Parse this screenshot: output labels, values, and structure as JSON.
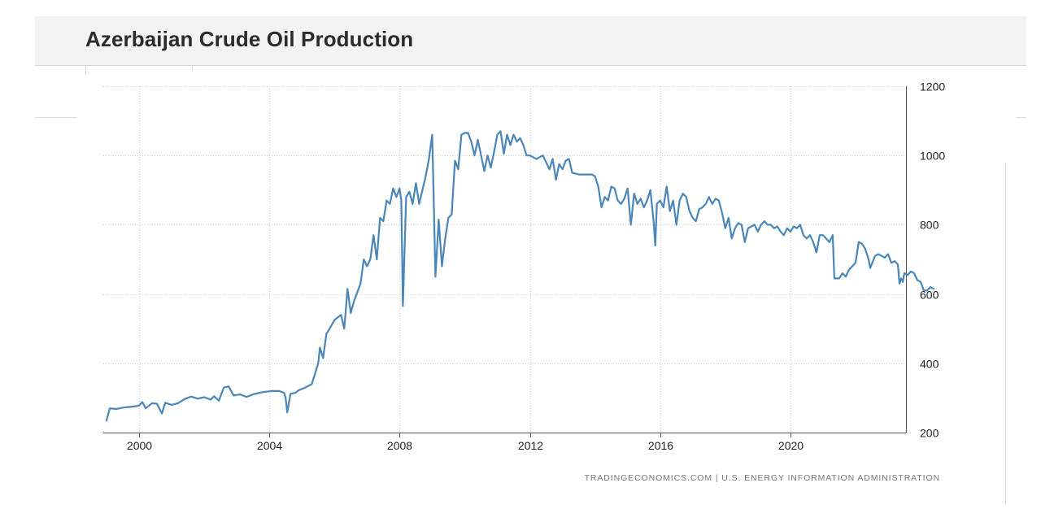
{
  "header": {
    "title": "Azerbaijan Crude Oil Production"
  },
  "footer": {
    "source": "TRADINGECONOMICS.COM  |  U.S. ENERGY INFORMATION ADMINISTRATION"
  },
  "colors": {
    "line": "#4a86b8",
    "grid": "#d0d0d0",
    "header_bg": "#f3f3f3",
    "title": "#2b2b2b"
  },
  "chart_data": {
    "type": "line",
    "title": "Azerbaijan Crude Oil Production",
    "xlabel": "",
    "ylabel": "",
    "xlim": [
      1998.9,
      2023.55
    ],
    "ylim": [
      200,
      1200
    ],
    "x_ticks": [
      2000,
      2004,
      2008,
      2012,
      2016,
      2020
    ],
    "x_tick_labels": [
      "2000",
      "2004",
      "2008",
      "2012",
      "2016",
      "2020"
    ],
    "y_ticks": [
      200,
      400,
      600,
      800,
      1000,
      1200
    ],
    "y_tick_labels": [
      "200",
      "400",
      "600",
      "800",
      "1000",
      "1200"
    ],
    "y_axis_position": "right",
    "grid": true,
    "legend": "none",
    "series": [
      {
        "values": [
          [
            1999.0,
            235
          ],
          [
            1999.1,
            270
          ],
          [
            1999.3,
            268
          ],
          [
            1999.5,
            272
          ],
          [
            1999.7,
            274
          ],
          [
            1999.9,
            276
          ],
          [
            2000.0,
            278
          ],
          [
            2000.1,
            288
          ],
          [
            2000.2,
            270
          ],
          [
            2000.4,
            285
          ],
          [
            2000.55,
            283
          ],
          [
            2000.7,
            255
          ],
          [
            2000.8,
            286
          ],
          [
            2001.0,
            280
          ],
          [
            2001.2,
            285
          ],
          [
            2001.4,
            297
          ],
          [
            2001.6,
            304
          ],
          [
            2001.8,
            298
          ],
          [
            2002.0,
            302
          ],
          [
            2002.2,
            295
          ],
          [
            2002.3,
            305
          ],
          [
            2002.45,
            292
          ],
          [
            2002.6,
            330
          ],
          [
            2002.75,
            333
          ],
          [
            2002.9,
            307
          ],
          [
            2003.1,
            310
          ],
          [
            2003.3,
            303
          ],
          [
            2003.5,
            310
          ],
          [
            2003.7,
            315
          ],
          [
            2003.9,
            318
          ],
          [
            2004.1,
            320
          ],
          [
            2004.3,
            320
          ],
          [
            2004.45,
            315
          ],
          [
            2004.5,
            300
          ],
          [
            2004.55,
            258
          ],
          [
            2004.65,
            312
          ],
          [
            2004.8,
            315
          ],
          [
            2004.9,
            322
          ],
          [
            2005.1,
            330
          ],
          [
            2005.3,
            340
          ],
          [
            2005.5,
            400
          ],
          [
            2005.55,
            445
          ],
          [
            2005.65,
            415
          ],
          [
            2005.75,
            485
          ],
          [
            2005.85,
            500
          ],
          [
            2006.0,
            525
          ],
          [
            2006.2,
            540
          ],
          [
            2006.3,
            500
          ],
          [
            2006.4,
            615
          ],
          [
            2006.5,
            545
          ],
          [
            2006.6,
            580
          ],
          [
            2006.7,
            605
          ],
          [
            2006.8,
            630
          ],
          [
            2006.9,
            700
          ],
          [
            2007.0,
            680
          ],
          [
            2007.1,
            700
          ],
          [
            2007.2,
            770
          ],
          [
            2007.3,
            700
          ],
          [
            2007.4,
            820
          ],
          [
            2007.5,
            810
          ],
          [
            2007.6,
            870
          ],
          [
            2007.7,
            860
          ],
          [
            2007.8,
            905
          ],
          [
            2007.9,
            880
          ],
          [
            2008.0,
            905
          ],
          [
            2008.05,
            870
          ],
          [
            2008.1,
            565
          ],
          [
            2008.2,
            880
          ],
          [
            2008.3,
            895
          ],
          [
            2008.4,
            860
          ],
          [
            2008.5,
            920
          ],
          [
            2008.6,
            860
          ],
          [
            2008.7,
            900
          ],
          [
            2008.8,
            940
          ],
          [
            2008.9,
            990
          ],
          [
            2009.0,
            1060
          ],
          [
            2009.05,
            860
          ],
          [
            2009.1,
            650
          ],
          [
            2009.2,
            815
          ],
          [
            2009.3,
            680
          ],
          [
            2009.4,
            760
          ],
          [
            2009.5,
            820
          ],
          [
            2009.6,
            830
          ],
          [
            2009.7,
            985
          ],
          [
            2009.8,
            960
          ],
          [
            2009.9,
            1060
          ],
          [
            2010.0,
            1065
          ],
          [
            2010.1,
            1065
          ],
          [
            2010.2,
            1040
          ],
          [
            2010.3,
            1000
          ],
          [
            2010.4,
            1045
          ],
          [
            2010.5,
            1000
          ],
          [
            2010.6,
            955
          ],
          [
            2010.7,
            1000
          ],
          [
            2010.8,
            965
          ],
          [
            2010.9,
            1010
          ],
          [
            2011.0,
            1060
          ],
          [
            2011.1,
            1070
          ],
          [
            2011.2,
            1005
          ],
          [
            2011.3,
            1060
          ],
          [
            2011.4,
            1030
          ],
          [
            2011.5,
            1060
          ],
          [
            2011.6,
            1040
          ],
          [
            2011.7,
            1050
          ],
          [
            2011.8,
            1030
          ],
          [
            2011.9,
            1000
          ],
          [
            2012.0,
            1000
          ],
          [
            2012.2,
            990
          ],
          [
            2012.4,
            1000
          ],
          [
            2012.6,
            960
          ],
          [
            2012.7,
            990
          ],
          [
            2012.8,
            930
          ],
          [
            2012.9,
            975
          ],
          [
            2013.0,
            960
          ],
          [
            2013.1,
            985
          ],
          [
            2013.2,
            990
          ],
          [
            2013.3,
            950
          ],
          [
            2013.5,
            945
          ],
          [
            2013.7,
            945
          ],
          [
            2013.9,
            945
          ],
          [
            2014.0,
            940
          ],
          [
            2014.1,
            910
          ],
          [
            2014.2,
            850
          ],
          [
            2014.3,
            880
          ],
          [
            2014.4,
            870
          ],
          [
            2014.5,
            910
          ],
          [
            2014.6,
            905
          ],
          [
            2014.7,
            870
          ],
          [
            2014.8,
            860
          ],
          [
            2014.9,
            875
          ],
          [
            2015.0,
            905
          ],
          [
            2015.1,
            800
          ],
          [
            2015.2,
            890
          ],
          [
            2015.3,
            860
          ],
          [
            2015.4,
            875
          ],
          [
            2015.5,
            850
          ],
          [
            2015.6,
            870
          ],
          [
            2015.7,
            900
          ],
          [
            2015.8,
            810
          ],
          [
            2015.85,
            740
          ],
          [
            2015.9,
            860
          ],
          [
            2016.0,
            870
          ],
          [
            2016.1,
            850
          ],
          [
            2016.2,
            910
          ],
          [
            2016.3,
            840
          ],
          [
            2016.4,
            870
          ],
          [
            2016.5,
            800
          ],
          [
            2016.6,
            870
          ],
          [
            2016.7,
            890
          ],
          [
            2016.8,
            880
          ],
          [
            2016.9,
            840
          ],
          [
            2017.0,
            820
          ],
          [
            2017.1,
            810
          ],
          [
            2017.2,
            845
          ],
          [
            2017.3,
            850
          ],
          [
            2017.4,
            860
          ],
          [
            2017.5,
            880
          ],
          [
            2017.6,
            860
          ],
          [
            2017.7,
            875
          ],
          [
            2017.8,
            870
          ],
          [
            2017.9,
            835
          ],
          [
            2018.0,
            790
          ],
          [
            2018.1,
            820
          ],
          [
            2018.2,
            760
          ],
          [
            2018.3,
            790
          ],
          [
            2018.4,
            805
          ],
          [
            2018.5,
            800
          ],
          [
            2018.6,
            750
          ],
          [
            2018.7,
            790
          ],
          [
            2018.8,
            795
          ],
          [
            2018.9,
            800
          ],
          [
            2019.0,
            780
          ],
          [
            2019.1,
            800
          ],
          [
            2019.2,
            810
          ],
          [
            2019.3,
            800
          ],
          [
            2019.4,
            800
          ],
          [
            2019.5,
            790
          ],
          [
            2019.6,
            795
          ],
          [
            2019.7,
            780
          ],
          [
            2019.8,
            770
          ],
          [
            2019.9,
            790
          ],
          [
            2020.0,
            780
          ],
          [
            2020.1,
            795
          ],
          [
            2020.2,
            790
          ],
          [
            2020.3,
            800
          ],
          [
            2020.4,
            770
          ],
          [
            2020.5,
            760
          ],
          [
            2020.6,
            770
          ],
          [
            2020.7,
            750
          ],
          [
            2020.8,
            720
          ],
          [
            2020.9,
            770
          ],
          [
            2021.0,
            770
          ],
          [
            2021.2,
            750
          ],
          [
            2021.3,
            770
          ],
          [
            2021.35,
            645
          ],
          [
            2021.5,
            645
          ],
          [
            2021.6,
            660
          ],
          [
            2021.7,
            650
          ],
          [
            2021.8,
            670
          ],
          [
            2021.9,
            680
          ],
          [
            2022.0,
            690
          ],
          [
            2022.1,
            750
          ],
          [
            2022.2,
            745
          ],
          [
            2022.3,
            730
          ],
          [
            2022.4,
            700
          ],
          [
            2022.45,
            675
          ],
          [
            2022.6,
            710
          ],
          [
            2022.7,
            715
          ],
          [
            2022.8,
            710
          ],
          [
            2022.9,
            705
          ],
          [
            2023.0,
            715
          ],
          [
            2023.1,
            690
          ],
          [
            2023.2,
            695
          ],
          [
            2023.3,
            685
          ],
          [
            2023.35,
            630
          ],
          [
            2023.4,
            645
          ],
          [
            2023.45,
            635
          ],
          [
            2023.5,
            660
          ],
          [
            2023.6,
            655
          ],
          [
            2023.7,
            665
          ],
          [
            2023.8,
            660
          ],
          [
            2023.9,
            640
          ],
          [
            2024.0,
            635
          ],
          [
            2024.1,
            610
          ],
          [
            2024.2,
            610
          ],
          [
            2024.3,
            620
          ],
          [
            2024.4,
            615
          ]
        ]
      }
    ],
    "source": "TRADINGECONOMICS.COM  |  U.S. ENERGY INFORMATION ADMINISTRATION"
  }
}
